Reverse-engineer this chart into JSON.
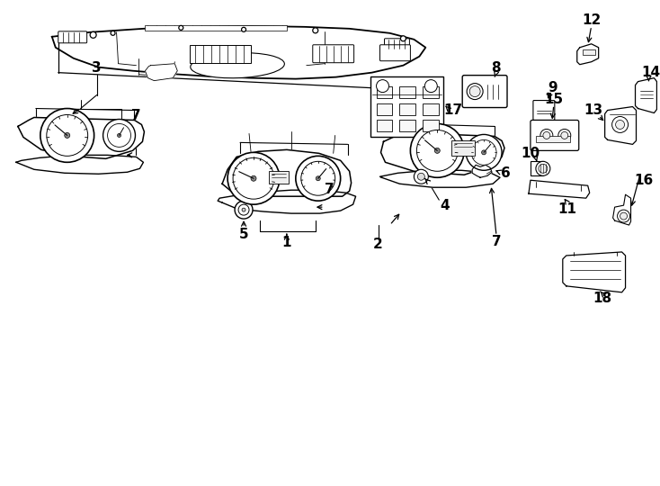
{
  "background_color": "#ffffff",
  "line_color": "#000000",
  "label_fontsize": 11,
  "parts_labels": [
    "1",
    "2",
    "3",
    "4",
    "5",
    "6",
    "7",
    "7",
    "7",
    "8",
    "9",
    "10",
    "11",
    "12",
    "13",
    "14",
    "15",
    "16",
    "17",
    "18"
  ]
}
